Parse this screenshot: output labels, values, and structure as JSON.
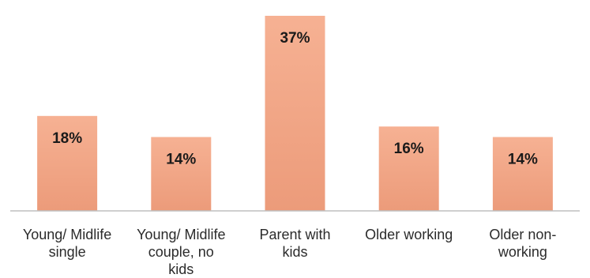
{
  "chart_data": {
    "type": "bar",
    "categories": [
      [
        "Young/ Midlife",
        "single"
      ],
      [
        "Young/ Midlife",
        "couple, no",
        "kids"
      ],
      [
        "Parent with",
        "kids"
      ],
      [
        "Older working"
      ],
      [
        "Older non-",
        "working"
      ]
    ],
    "values": [
      18,
      14,
      37,
      16,
      14
    ],
    "data_labels": [
      "18%",
      "14%",
      "37%",
      "16%",
      "14%"
    ],
    "ylim": [
      0,
      37
    ],
    "grid": false,
    "legend": "none",
    "colors": {
      "bar_top": "#f6b193",
      "bar_bottom": "#ec9b7a",
      "axis": "#bfbfbf"
    }
  }
}
